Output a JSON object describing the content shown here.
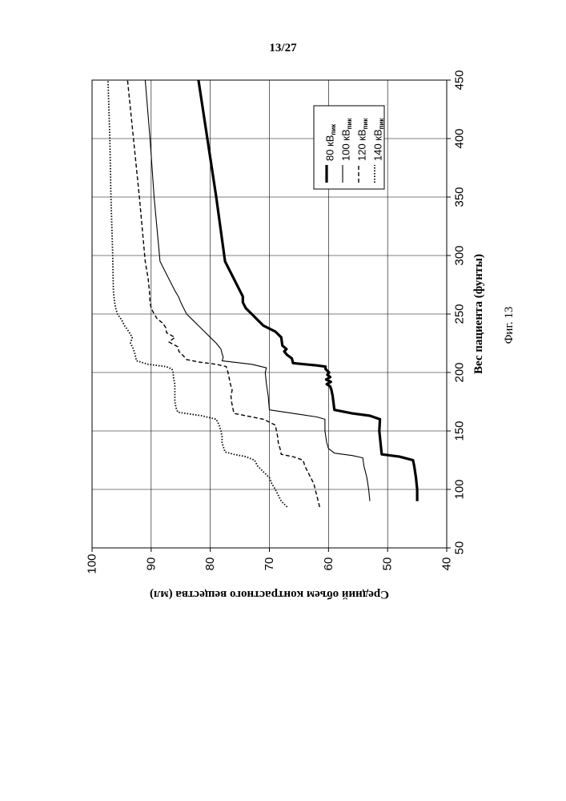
{
  "page": {
    "number": "13/27"
  },
  "figure": {
    "caption": "Фиг. 13"
  },
  "chart_data": {
    "type": "line",
    "title": "",
    "xlabel": "Вес пациента (фунты)",
    "ylabel": "Средний объем контрастного вещества (мл)",
    "xlim": [
      50,
      450
    ],
    "ylim": [
      40,
      100
    ],
    "xticks": [
      50,
      100,
      150,
      200,
      250,
      300,
      350,
      400,
      450
    ],
    "yticks": [
      40,
      50,
      60,
      70,
      80,
      90,
      100
    ],
    "grid": true,
    "legend_position": "top-right",
    "series": [
      {
        "name": "80 кВ",
        "sub": "пик",
        "style": "solid-bold",
        "points": [
          [
            90,
            45
          ],
          [
            100,
            45
          ],
          [
            110,
            45.2
          ],
          [
            120,
            45.5
          ],
          [
            125,
            45.7
          ],
          [
            128,
            48
          ],
          [
            130,
            51
          ],
          [
            140,
            51.2
          ],
          [
            150,
            51.4
          ],
          [
            160,
            51.3
          ],
          [
            163,
            53
          ],
          [
            165,
            56
          ],
          [
            168,
            59
          ],
          [
            180,
            59.3
          ],
          [
            185,
            59.5
          ],
          [
            188,
            59.7
          ],
          [
            190,
            60.3
          ],
          [
            192,
            59.6
          ],
          [
            194,
            60.4
          ],
          [
            196,
            59.7
          ],
          [
            198,
            60.2
          ],
          [
            200,
            59.9
          ],
          [
            203,
            60.5
          ],
          [
            205,
            60.5
          ],
          [
            206,
            62
          ],
          [
            207,
            64
          ],
          [
            208,
            66
          ],
          [
            212,
            66.2
          ],
          [
            215,
            67
          ],
          [
            218,
            67.5
          ],
          [
            220,
            67.1
          ],
          [
            223,
            67.8
          ],
          [
            230,
            68
          ],
          [
            235,
            69
          ],
          [
            240,
            71
          ],
          [
            245,
            72
          ],
          [
            250,
            73
          ],
          [
            255,
            74
          ],
          [
            260,
            74.5
          ],
          [
            265,
            74.5
          ],
          [
            270,
            75
          ],
          [
            275,
            75.5
          ],
          [
            280,
            76
          ],
          [
            290,
            77
          ],
          [
            295,
            77.5
          ],
          [
            350,
            79
          ],
          [
            400,
            80.5
          ],
          [
            450,
            82
          ]
        ]
      },
      {
        "name": "100 кВ",
        "sub": "пик",
        "style": "solid-thin",
        "points": [
          [
            90,
            53
          ],
          [
            100,
            53.2
          ],
          [
            110,
            53.5
          ],
          [
            120,
            54
          ],
          [
            127,
            54.2
          ],
          [
            129,
            56
          ],
          [
            131,
            59
          ],
          [
            135,
            60
          ],
          [
            140,
            60.3
          ],
          [
            150,
            60.6
          ],
          [
            160,
            60.6
          ],
          [
            162,
            62
          ],
          [
            165,
            66
          ],
          [
            168,
            70
          ],
          [
            180,
            70.2
          ],
          [
            190,
            70.5
          ],
          [
            200,
            70.7
          ],
          [
            204,
            70.5
          ],
          [
            207,
            73
          ],
          [
            210,
            78
          ],
          [
            213,
            77.8
          ],
          [
            216,
            78
          ],
          [
            220,
            78.2
          ],
          [
            225,
            79
          ],
          [
            230,
            80
          ],
          [
            235,
            81
          ],
          [
            240,
            82
          ],
          [
            245,
            83
          ],
          [
            250,
            84
          ],
          [
            255,
            84.5
          ],
          [
            260,
            85
          ],
          [
            265,
            85.4
          ],
          [
            270,
            86
          ],
          [
            280,
            87
          ],
          [
            290,
            88
          ],
          [
            295,
            88.5
          ],
          [
            350,
            89.5
          ],
          [
            400,
            90.2
          ],
          [
            450,
            91
          ]
        ]
      },
      {
        "name": "120 кВ",
        "sub": "пик",
        "style": "dashed",
        "points": [
          [
            85,
            61.5
          ],
          [
            95,
            62
          ],
          [
            105,
            62.5
          ],
          [
            110,
            63
          ],
          [
            115,
            63.5
          ],
          [
            120,
            64
          ],
          [
            125,
            64.3
          ],
          [
            128,
            66
          ],
          [
            130,
            68
          ],
          [
            135,
            68.2
          ],
          [
            140,
            68.5
          ],
          [
            145,
            68.6
          ],
          [
            150,
            68.8
          ],
          [
            155,
            69
          ],
          [
            160,
            71
          ],
          [
            163,
            74
          ],
          [
            165,
            76
          ],
          [
            170,
            76.2
          ],
          [
            175,
            76.4
          ],
          [
            180,
            76.5
          ],
          [
            185,
            76.3
          ],
          [
            190,
            76.6
          ],
          [
            195,
            76.8
          ],
          [
            200,
            77
          ],
          [
            205,
            77.3
          ],
          [
            207,
            79
          ],
          [
            209,
            82
          ],
          [
            211,
            84
          ],
          [
            214,
            84.5
          ],
          [
            218,
            85.3
          ],
          [
            222,
            85.5
          ],
          [
            226,
            87
          ],
          [
            230,
            86
          ],
          [
            234,
            87.4
          ],
          [
            238,
            87.5
          ],
          [
            242,
            88
          ],
          [
            246,
            89
          ],
          [
            250,
            89.5
          ],
          [
            255,
            90
          ],
          [
            260,
            90.2
          ],
          [
            270,
            90.3
          ],
          [
            280,
            90.5
          ],
          [
            295,
            91
          ],
          [
            350,
            92
          ],
          [
            400,
            93
          ],
          [
            450,
            94
          ]
        ]
      },
      {
        "name": "140 кВ",
        "sub": "пик",
        "style": "dotted",
        "points": [
          [
            85,
            67
          ],
          [
            90,
            68
          ],
          [
            95,
            68.5
          ],
          [
            100,
            69
          ],
          [
            105,
            69.6
          ],
          [
            110,
            70
          ],
          [
            115,
            71
          ],
          [
            120,
            72
          ],
          [
            125,
            72.5
          ],
          [
            128,
            74
          ],
          [
            130,
            76
          ],
          [
            132,
            77.5
          ],
          [
            140,
            78
          ],
          [
            145,
            78
          ],
          [
            150,
            78.2
          ],
          [
            155,
            78.5
          ],
          [
            160,
            79
          ],
          [
            163,
            81.5
          ],
          [
            166,
            85.5
          ],
          [
            170,
            85.8
          ],
          [
            175,
            86
          ],
          [
            180,
            86
          ],
          [
            185,
            86
          ],
          [
            190,
            86
          ],
          [
            195,
            86.2
          ],
          [
            200,
            86.3
          ],
          [
            203,
            86.5
          ],
          [
            205,
            87.5
          ],
          [
            207,
            90.5
          ],
          [
            210,
            92.5
          ],
          [
            215,
            92.7
          ],
          [
            220,
            93
          ],
          [
            225,
            93.5
          ],
          [
            230,
            93.2
          ],
          [
            235,
            93.8
          ],
          [
            240,
            94.5
          ],
          [
            245,
            95
          ],
          [
            250,
            95.7
          ],
          [
            255,
            96
          ],
          [
            260,
            96.2
          ],
          [
            270,
            96.4
          ],
          [
            300,
            96.5
          ],
          [
            350,
            96.8
          ],
          [
            400,
            97
          ],
          [
            450,
            97.3
          ]
        ]
      }
    ]
  }
}
